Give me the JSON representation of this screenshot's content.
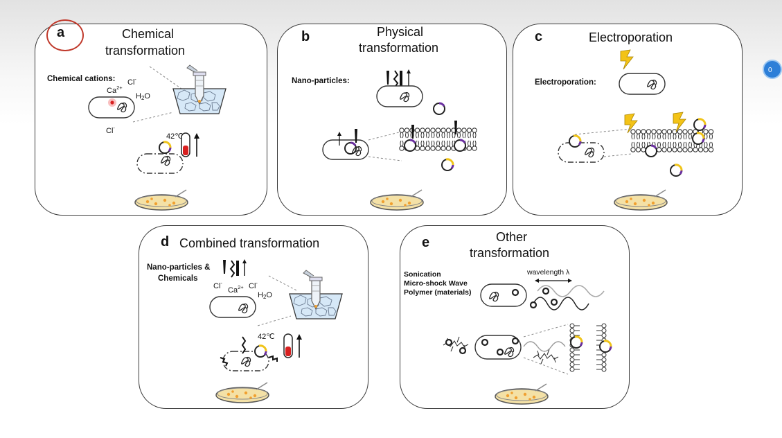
{
  "panels": {
    "a": {
      "letter": "a",
      "title_line1": "Chemical",
      "title_line2": "transformation",
      "label": "Chemical cations",
      "label_colon": ":",
      "cl": "Cl",
      "cl_sup": "-",
      "ca": "Ca",
      "ca_sup": "2+",
      "h2o_h": "H",
      "h2o_sub": "2",
      "h2o_o": "O",
      "temp": "42℃"
    },
    "b": {
      "letter": "b",
      "title_line1": "Physical",
      "title_line2": "transformation",
      "label": "Nano-particles",
      "label_colon": ":"
    },
    "c": {
      "letter": "c",
      "title_line1": "Electroporation",
      "label": "Electroporation",
      "label_colon": ":"
    },
    "d": {
      "letter": "d",
      "title_line1": "Combined transformation",
      "label_line1": "Nano-particles &",
      "label_line2": "Chemicals",
      "cl": "Cl",
      "cl_sup": "-",
      "ca": "Ca",
      "ca_sup": "2+",
      "h2o_h": "H",
      "h2o_sub": "2",
      "h2o_o": "O",
      "temp": "42℃"
    },
    "e": {
      "letter": "e",
      "title_line1": "Other",
      "title_line2": "transformation",
      "method1": "Sonication",
      "method2": "Micro-shock Wave",
      "method3": "Polymer (materials)",
      "wavelength": "wavelength λ"
    }
  },
  "side_badge": "0",
  "colors": {
    "highlight": "#c0392b",
    "plate": "#f4e1a6",
    "colony": "#f0a030",
    "thermo": "#d82020",
    "bolt": "#f3c317",
    "plasmid": "#5b2d8e",
    "ice": "#d6e8f7"
  }
}
